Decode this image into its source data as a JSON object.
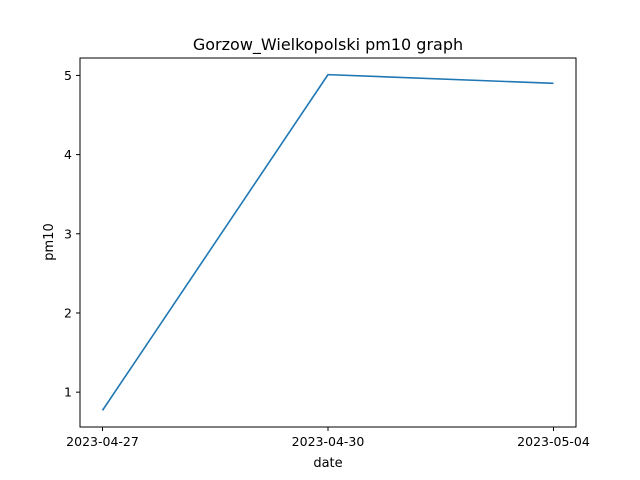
{
  "chart_data": {
    "type": "line",
    "title": "Gorzow_Wielkopolski pm10 graph",
    "xlabel": "date",
    "ylabel": "pm10",
    "x": [
      "2023-04-27",
      "2023-04-30",
      "2023-05-04"
    ],
    "series": [
      {
        "values": [
          0.77,
          5.01,
          4.9
        ],
        "color": "#1f77b4"
      }
    ],
    "xticks": [
      "2023-04-27",
      "2023-04-30",
      "2023-05-04"
    ],
    "yticks": [
      1,
      2,
      3,
      4,
      5
    ],
    "ylim": [
      0.56,
      5.22
    ],
    "grid": false,
    "legend": "none"
  }
}
